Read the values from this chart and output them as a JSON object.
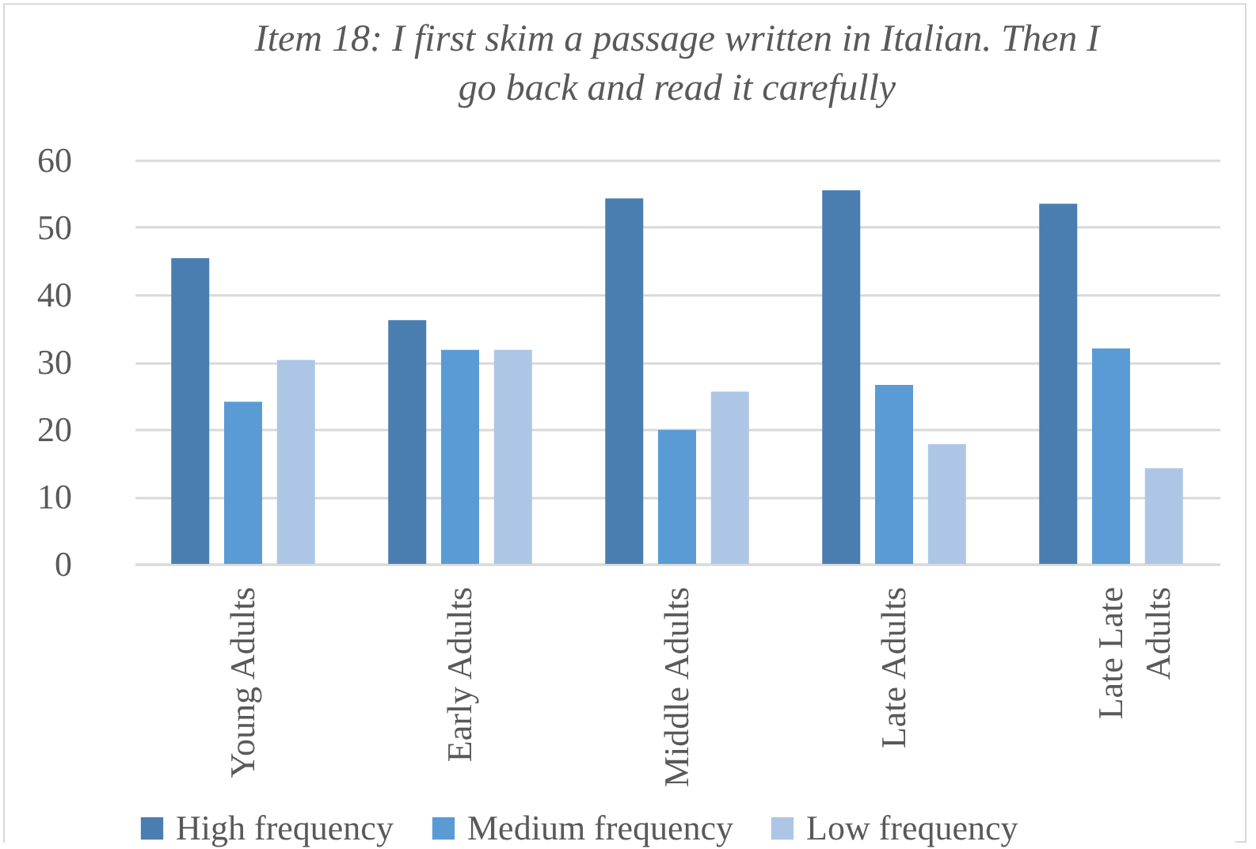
{
  "chart_data": {
    "type": "bar",
    "title": "Item 18: I first skim a passage written in Italian. Then I go back and read it carefully",
    "categories": [
      "Young Adults",
      "Early Adults",
      "Middle Adults",
      "Late Adults",
      "Late Late Adults"
    ],
    "series": [
      {
        "name": "High frequency",
        "color": "#4a7eb0",
        "values": [
          45.4,
          36.2,
          54.3,
          55.5,
          53.5
        ]
      },
      {
        "name": "Medium frequency",
        "color": "#5b9bd5",
        "values": [
          24.1,
          31.8,
          19.9,
          26.6,
          32.0
        ]
      },
      {
        "name": "Low frequency",
        "color": "#adc6e5",
        "values": [
          30.3,
          31.8,
          25.6,
          17.8,
          14.2
        ]
      }
    ],
    "ylim": [
      0,
      60
    ],
    "yticks": [
      0,
      10,
      20,
      30,
      40,
      50,
      60
    ],
    "grid": "y",
    "legend": "bottom"
  }
}
